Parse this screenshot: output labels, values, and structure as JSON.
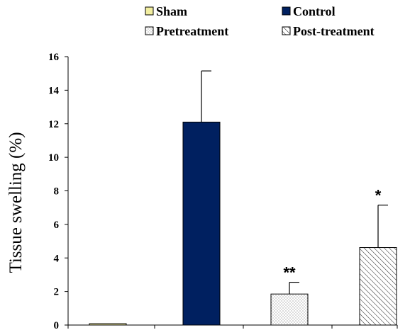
{
  "chart_data": {
    "type": "bar",
    "categories": [
      "Sham",
      "Control",
      "Pretreatment",
      "Post-treatment"
    ],
    "series": [
      {
        "name": "Tissue swelling",
        "values": [
          0.08,
          12.1,
          1.85,
          4.62
        ],
        "error_plus": [
          0,
          3.05,
          0.7,
          2.53
        ],
        "fills": [
          "solid-yellow",
          "solid-navy",
          "dotted",
          "diagonal-hatch"
        ],
        "colors": [
          "#f2eea0",
          "#002060",
          "#ffffff",
          "#ffffff"
        ],
        "significance": [
          "",
          "",
          "**",
          "*"
        ]
      }
    ],
    "ylabel": "Tissue swelling (%)",
    "xlabel": "",
    "ylim": [
      0,
      16
    ],
    "yticks": [
      "0",
      "2",
      "4",
      "6",
      "8",
      "10",
      "12",
      "14",
      "16"
    ],
    "legend": {
      "placement": "top",
      "entries": [
        "Sham",
        "Control",
        "Pretreatment",
        "Post-treatment"
      ]
    },
    "grid": false
  }
}
